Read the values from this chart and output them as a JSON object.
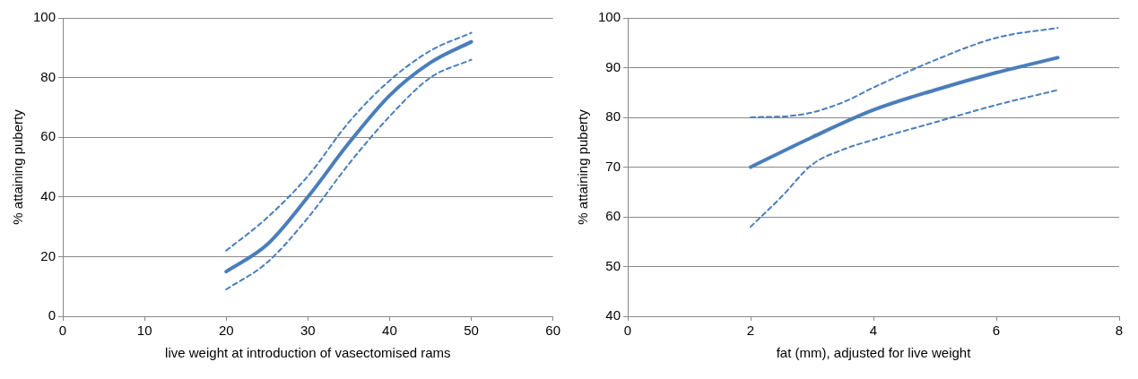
{
  "chart_data": [
    {
      "type": "line",
      "xlabel": "live weight at introduction of vasectomised rams",
      "ylabel": "% attaining puberty",
      "xlim": [
        0,
        60
      ],
      "xticks": [
        0,
        10,
        20,
        30,
        40,
        50,
        60
      ],
      "ylim": [
        0,
        100
      ],
      "yticks": [
        0,
        20,
        40,
        60,
        80,
        100
      ],
      "grid": "y",
      "legend": false,
      "marker": "none",
      "series": [
        {
          "color": "#4a7ebb",
          "line_style": "solid",
          "x": [
            20,
            25,
            30,
            35,
            40,
            45,
            50
          ],
          "values": [
            15,
            24,
            40,
            58,
            74,
            85,
            92
          ]
        },
        {
          "color": "#4a7ebb",
          "line_style": "dashed",
          "x": [
            20,
            25,
            30,
            35,
            40,
            45,
            50
          ],
          "values": [
            22,
            33,
            47,
            65,
            79,
            89,
            95
          ]
        },
        {
          "color": "#4a7ebb",
          "line_style": "dashed",
          "x": [
            20,
            25,
            30,
            35,
            40,
            45,
            50
          ],
          "values": [
            9,
            18,
            33,
            51,
            67,
            80,
            86
          ]
        }
      ]
    },
    {
      "type": "line",
      "xlabel": "fat (mm), adjusted for live weight",
      "ylabel": "% attaining puberty",
      "xlim": [
        0,
        8
      ],
      "xticks": [
        0,
        2,
        4,
        6,
        8
      ],
      "ylim": [
        40,
        100
      ],
      "yticks": [
        40,
        50,
        60,
        70,
        80,
        90,
        100
      ],
      "grid": "y",
      "legend": false,
      "marker": "none",
      "series": [
        {
          "color": "#4a7ebb",
          "line_style": "solid",
          "x": [
            2,
            3,
            4,
            5,
            6,
            7
          ],
          "values": [
            70,
            76,
            81.5,
            85.5,
            89,
            92
          ]
        },
        {
          "color": "#4a7ebb",
          "line_style": "dashed",
          "x": [
            2,
            2.8,
            3.5,
            4,
            5,
            6,
            7
          ],
          "values": [
            80,
            80.5,
            83,
            86,
            91.5,
            96,
            98
          ]
        },
        {
          "color": "#4a7ebb",
          "line_style": "dashed",
          "x": [
            2,
            2.5,
            3,
            3.5,
            4,
            5,
            6,
            7
          ],
          "values": [
            58,
            64,
            70.5,
            73.5,
            75.5,
            79,
            82.5,
            85.5
          ]
        }
      ]
    }
  ]
}
